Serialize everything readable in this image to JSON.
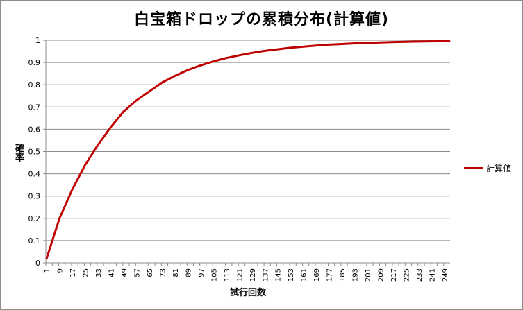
{
  "chart_data": {
    "type": "line",
    "title": "白宝箱ドロップの累積分布(計算値)",
    "xlabel": "試行回数",
    "ylabel": "確率",
    "ylim": [
      0,
      1
    ],
    "yticks": [
      "0",
      "0.1",
      "0.2",
      "0.3",
      "0.4",
      "0.5",
      "0.6",
      "0.7",
      "0.8",
      "0.9",
      "1"
    ],
    "categories": [
      "1",
      "9",
      "17",
      "25",
      "33",
      "41",
      "49",
      "57",
      "65",
      "73",
      "81",
      "89",
      "97",
      "105",
      "113",
      "121",
      "129",
      "137",
      "145",
      "153",
      "161",
      "169",
      "177",
      "185",
      "193",
      "201",
      "209",
      "217",
      "225",
      "233",
      "241",
      "249"
    ],
    "grid": true,
    "legend_position": "right",
    "series": [
      {
        "name": "計算値",
        "color": "#c00000",
        "x": [
          1,
          9,
          17,
          25,
          33,
          41,
          49,
          57,
          65,
          73,
          81,
          89,
          97,
          105,
          113,
          121,
          129,
          137,
          145,
          153,
          161,
          169,
          177,
          185,
          193,
          201,
          209,
          217,
          225,
          233,
          241,
          249,
          252
        ],
        "values": [
          0.02,
          0.2,
          0.33,
          0.44,
          0.53,
          0.61,
          0.68,
          0.73,
          0.77,
          0.81,
          0.84,
          0.866,
          0.887,
          0.905,
          0.92,
          0.932,
          0.943,
          0.952,
          0.959,
          0.966,
          0.971,
          0.976,
          0.98,
          0.983,
          0.986,
          0.988,
          0.99,
          0.992,
          0.993,
          0.994,
          0.995,
          0.996,
          0.996
        ]
      }
    ]
  }
}
